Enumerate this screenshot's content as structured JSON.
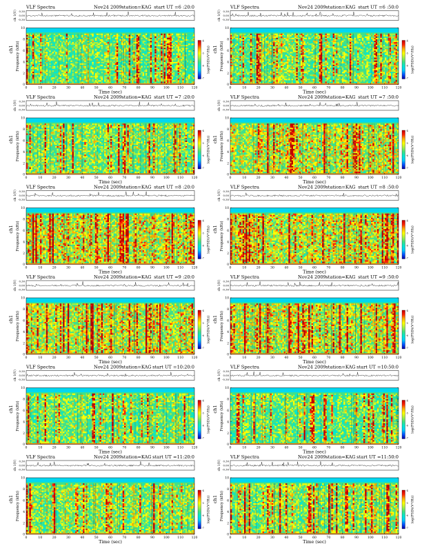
{
  "figure_title": "",
  "colors": {
    "colormap": [
      "#0000a0",
      "#0050ff",
      "#00c8ff",
      "#00e8d0",
      "#40e080",
      "#a8f040",
      "#ffff00",
      "#ffb000",
      "#ff2000",
      "#c00000"
    ],
    "trace": "#000000",
    "frame": "#000000"
  },
  "common": {
    "title_left": "VLF Spectra",
    "date": "Nov24 2009",
    "station": "station=KAG",
    "start_prefix": "start  UT =",
    "ylabel_trace": "ch 1(V)",
    "ylabel_spectrum": "Frequency  (kHz)",
    "ylabel_channel": "ch1",
    "xlabel": "Time  (sec)",
    "colorbar_label": "log(PSD)(V²/Hz)",
    "trace_ticks": [
      "0.30",
      "0.00",
      "-0.30"
    ],
    "colorbar_ticks": [
      "-4",
      "-5",
      "-6",
      "-7"
    ]
  },
  "chart_data": [
    {
      "type": "heatmap",
      "start_ut": "6 :20:0",
      "intensity": 0.28,
      "xlim": [
        0,
        120
      ],
      "ylim": [
        0,
        10
      ],
      "x_ticks": [
        0,
        10,
        20,
        30,
        40,
        50,
        60,
        70,
        80,
        90,
        100,
        110,
        120
      ],
      "y_ticks": [
        0,
        2,
        4,
        6,
        8,
        10
      ]
    },
    {
      "type": "heatmap",
      "start_ut": "6 :50:0",
      "intensity": 0.32,
      "xlim": [
        0,
        120
      ],
      "ylim": [
        0,
        10
      ],
      "x_ticks": [
        0,
        10,
        20,
        30,
        40,
        50,
        60,
        70,
        80,
        90,
        100,
        110,
        120
      ],
      "y_ticks": [
        0,
        2,
        4,
        6,
        8,
        10
      ]
    },
    {
      "type": "heatmap",
      "start_ut": "7 :20:0",
      "intensity": 0.38,
      "xlim": [
        0,
        120
      ],
      "ylim": [
        0,
        10
      ],
      "x_ticks": [
        0,
        10,
        20,
        30,
        40,
        50,
        60,
        70,
        80,
        90,
        100,
        110,
        120
      ],
      "y_ticks": [
        0,
        2,
        4,
        6,
        8,
        10
      ]
    },
    {
      "type": "heatmap",
      "start_ut": "7 :50:0",
      "intensity": 0.55,
      "xlim": [
        0,
        120
      ],
      "ylim": [
        0,
        10
      ],
      "x_ticks": [
        0,
        10,
        20,
        30,
        40,
        50,
        60,
        70,
        80,
        90,
        100,
        110,
        120
      ],
      "y_ticks": [
        0,
        2,
        4,
        6,
        8,
        10
      ]
    },
    {
      "type": "heatmap",
      "start_ut": "8 :20:0",
      "intensity": 0.62,
      "xlim": [
        0,
        120
      ],
      "ylim": [
        0,
        10
      ],
      "x_ticks": [
        0,
        10,
        20,
        30,
        40,
        50,
        60,
        70,
        80,
        90,
        100,
        110,
        120
      ],
      "y_ticks": [
        0,
        2,
        4,
        6,
        8,
        10
      ]
    },
    {
      "type": "heatmap",
      "start_ut": "8 :50:0",
      "intensity": 0.58,
      "xlim": [
        0,
        120
      ],
      "ylim": [
        0,
        10
      ],
      "x_ticks": [
        0,
        10,
        20,
        30,
        40,
        50,
        60,
        70,
        80,
        90,
        100,
        110,
        120
      ],
      "y_ticks": [
        0,
        2,
        4,
        6,
        8,
        10
      ]
    },
    {
      "type": "heatmap",
      "start_ut": "9 :20:0",
      "intensity": 0.6,
      "xlim": [
        0,
        120
      ],
      "ylim": [
        0,
        10
      ],
      "x_ticks": [
        0,
        10,
        20,
        30,
        40,
        50,
        60,
        70,
        80,
        90,
        100,
        110,
        120
      ],
      "y_ticks": [
        0,
        2,
        4,
        6,
        8,
        10
      ]
    },
    {
      "type": "heatmap",
      "start_ut": "9 :50:0",
      "intensity": 0.56,
      "xlim": [
        0,
        120
      ],
      "ylim": [
        0,
        10
      ],
      "x_ticks": [
        0,
        10,
        20,
        30,
        40,
        50,
        60,
        70,
        80,
        90,
        100,
        110,
        120
      ],
      "y_ticks": [
        0,
        2,
        4,
        6,
        8,
        10
      ]
    },
    {
      "type": "heatmap",
      "start_ut": "10:20:0",
      "intensity": 0.34,
      "xlim": [
        0,
        120
      ],
      "ylim": [
        0,
        10
      ],
      "x_ticks": [
        0,
        10,
        20,
        30,
        40,
        50,
        60,
        70,
        80,
        90,
        100,
        110,
        120
      ],
      "y_ticks": [
        0,
        2,
        4,
        6,
        8,
        10
      ]
    },
    {
      "type": "heatmap",
      "start_ut": "10:50:0",
      "intensity": 0.3,
      "xlim": [
        0,
        120
      ],
      "ylim": [
        0,
        10
      ],
      "x_ticks": [
        0,
        10,
        20,
        30,
        40,
        50,
        60,
        70,
        80,
        90,
        100,
        110,
        120
      ],
      "y_ticks": [
        0,
        2,
        4,
        6,
        8,
        10
      ]
    },
    {
      "type": "heatmap",
      "start_ut": "11:20:0",
      "intensity": 0.4,
      "xlim": [
        0,
        120
      ],
      "ylim": [
        0,
        10
      ],
      "x_ticks": [
        0,
        10,
        20,
        30,
        40,
        50,
        60,
        70,
        80,
        90,
        100,
        110,
        120
      ],
      "y_ticks": [
        0,
        2,
        4,
        6,
        8,
        10
      ]
    },
    {
      "type": "heatmap",
      "start_ut": "11:50:0",
      "intensity": 0.42,
      "xlim": [
        0,
        120
      ],
      "ylim": [
        0,
        10
      ],
      "x_ticks": [
        0,
        10,
        20,
        30,
        40,
        50,
        60,
        70,
        80,
        90,
        100,
        110,
        120
      ],
      "y_ticks": [
        0,
        2,
        4,
        6,
        8,
        10
      ]
    }
  ]
}
